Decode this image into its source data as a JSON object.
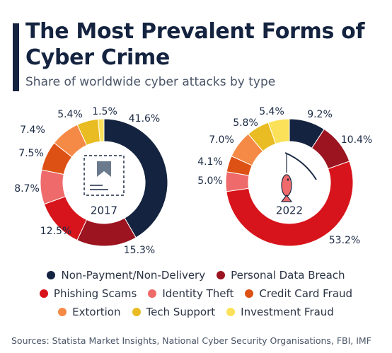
{
  "header": {
    "title": "The Most Prevalent Forms of Cyber Crime",
    "subtitle": "Share of worldwide cyber attacks by type"
  },
  "source": "Sources: Statista Market Insights, National Cyber Security Organisations, FBI, IMF",
  "icons": [
    "bookmark-icon",
    "fishing-hook-icon"
  ],
  "categories": [
    {
      "name": "Non-Payment/Non-Delivery",
      "color": "#14233f"
    },
    {
      "name": "Personal Data Breach",
      "color": "#9b1420"
    },
    {
      "name": "Phishing Scams",
      "color": "#d7141b"
    },
    {
      "name": "Identity Theft",
      "color": "#ef6a6a"
    },
    {
      "name": "Credit Card Fraud",
      "color": "#dd5114"
    },
    {
      "name": "Extortion",
      "color": "#f58a46"
    },
    {
      "name": "Tech Support",
      "color": "#e8bc22"
    },
    {
      "name": "Investment Fraud",
      "color": "#fbe159"
    }
  ],
  "chart_data": [
    {
      "type": "pie",
      "label": "2017",
      "categories": [
        "Non-Payment/Non-Delivery",
        "Personal Data Breach",
        "Phishing Scams",
        "Identity Theft",
        "Credit Card Fraud",
        "Extortion",
        "Tech Support",
        "Investment Fraud"
      ],
      "values": [
        41.6,
        15.3,
        12.5,
        8.7,
        7.5,
        7.4,
        5.4,
        1.5
      ],
      "value_labels": [
        "41.6%",
        "15.3%",
        "12.5%",
        "8.7%",
        "7.5%",
        "7.4%",
        "5.4%",
        "1.5%"
      ],
      "donut": true
    },
    {
      "type": "pie",
      "label": "2022",
      "categories": [
        "Non-Payment/Non-Delivery",
        "Personal Data Breach",
        "Phishing Scams",
        "Identity Theft",
        "Credit Card Fraud",
        "Extortion",
        "Tech Support",
        "Investment Fraud"
      ],
      "values": [
        9.2,
        10.4,
        53.2,
        5.0,
        4.1,
        7.0,
        5.8,
        5.4
      ],
      "value_labels": [
        "9.2%",
        "10.4%",
        "53.2%",
        "5.0%",
        "4.1%",
        "7.0%",
        "5.8%",
        "5.4%"
      ],
      "donut": true
    }
  ]
}
